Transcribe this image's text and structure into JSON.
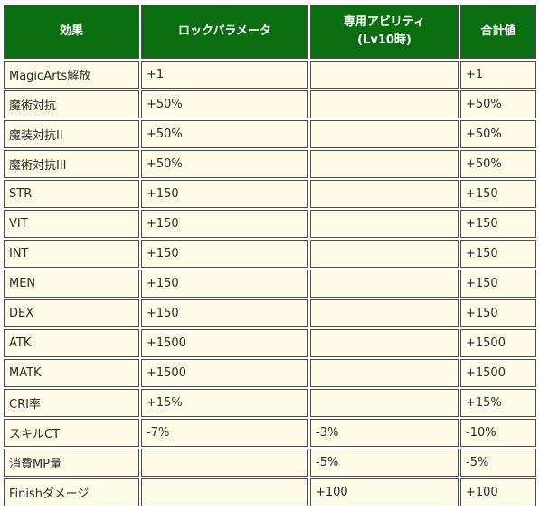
{
  "table": {
    "headers": {
      "effect": "効果",
      "lock_params": "ロックパラメータ",
      "exclusive_ability": "専用アビリティ",
      "exclusive_ability_sub": "(Lv10時)",
      "total": "合計値"
    },
    "rows": [
      {
        "effect": "MagicArts解放",
        "lock": "+1",
        "ability": "",
        "total": "+1"
      },
      {
        "effect": "魔術対抗",
        "lock": "+50%",
        "ability": "",
        "total": "+50%"
      },
      {
        "effect": "魔装対抗II",
        "lock": "+50%",
        "ability": "",
        "total": "+50%"
      },
      {
        "effect": "魔術対抗III",
        "lock": "+50%",
        "ability": "",
        "total": "+50%"
      },
      {
        "effect": "STR",
        "lock": "+150",
        "ability": "",
        "total": "+150"
      },
      {
        "effect": "VIT",
        "lock": "+150",
        "ability": "",
        "total": "+150"
      },
      {
        "effect": "INT",
        "lock": "+150",
        "ability": "",
        "total": "+150"
      },
      {
        "effect": "MEN",
        "lock": "+150",
        "ability": "",
        "total": "+150"
      },
      {
        "effect": "DEX",
        "lock": "+150",
        "ability": "",
        "total": "+150"
      },
      {
        "effect": "ATK",
        "lock": "+1500",
        "ability": "",
        "total": "+1500"
      },
      {
        "effect": "MATK",
        "lock": "+1500",
        "ability": "",
        "total": "+1500"
      },
      {
        "effect": "CRI率",
        "lock": "+15%",
        "ability": "",
        "total": "+15%"
      },
      {
        "effect": "スキルCT",
        "lock": "-7%",
        "ability": "-3%",
        "total": "-10%"
      },
      {
        "effect": "消費MP量",
        "lock": "",
        "ability": "-5%",
        "total": "-5%"
      },
      {
        "effect": "Finishダメージ",
        "lock": "",
        "ability": "+100",
        "total": "+100"
      }
    ]
  },
  "colors": {
    "header_bg": "#0a6e10",
    "header_text": "#ffffff",
    "cell_bg": "#fffbe6",
    "border": "#4d4d4d"
  }
}
